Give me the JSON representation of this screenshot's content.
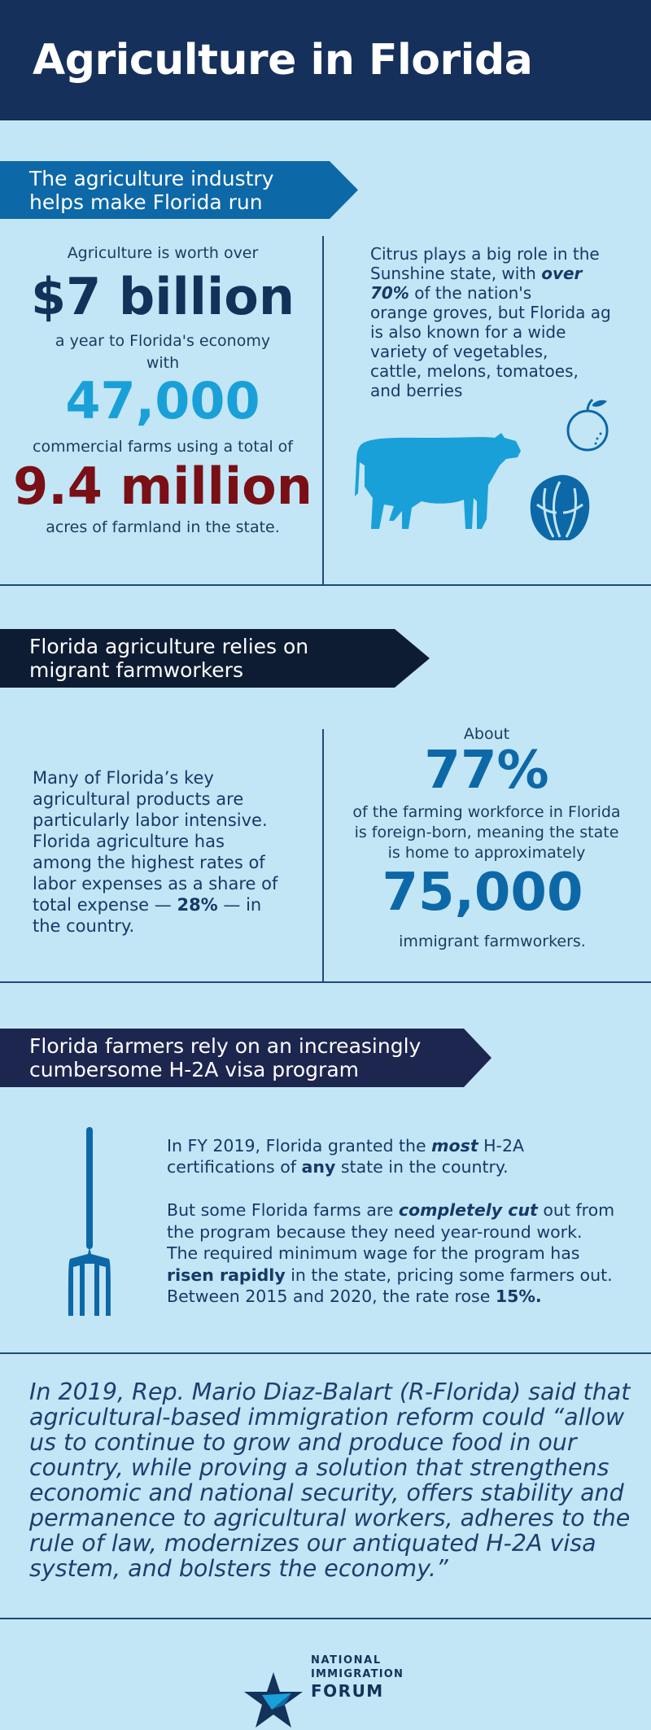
{
  "header": {
    "title": "Agriculture in Florida"
  },
  "section1": {
    "banner": [
      "The agriculture industry",
      "helps make Florida run"
    ],
    "worth_intro": "Agriculture is worth over",
    "worth_value": "$7 billion",
    "worth_suffix": "a year to Florida's economy",
    "with": "with",
    "farms_value": "47,000",
    "farms_suffix": "commercial farms using a total of",
    "acres_value": "9.4 million",
    "acres_suffix": "acres of farmland in the state.",
    "citrus": {
      "l1": "Citrus plays a big role in the",
      "l2a": "Sunshine state, with ",
      "l2b": "over",
      "l3a": "70%",
      "l3b": " of the nation's",
      "l4": "orange groves, but Florida ag",
      "l5": "is also known for a wide",
      "l6": "variety of vegetables,",
      "l7": "cattle, melons, tomatoes,",
      "l8": "and berries"
    },
    "colors": {
      "worth": "#13325a",
      "farms": "#1aa0d8",
      "acres": "#7a0f16"
    }
  },
  "section2": {
    "banner": [
      "Florida agriculture relies on",
      "migrant farmworkers"
    ],
    "left": {
      "l1": "Many of Florida’s key",
      "l2": "agricultural products are",
      "l3": "particularly labor intensive.",
      "l4": "Florida agriculture has",
      "l5": "among the highest rates of",
      "l6": "labor expenses as a share of",
      "l7a": "total expense — ",
      "l7b": "28%",
      "l7c": " — in",
      "l8": "the country."
    },
    "about": "About",
    "pct_value": "77%",
    "pct_line1": "of the farming workforce in Florida",
    "pct_line2": "is foreign-born, meaning the state",
    "pct_line3": "is home to approximately",
    "workers_value": "75,000",
    "workers_suffix": "immigrant farmworkers."
  },
  "section3": {
    "banner": [
      "Florida farmers rely on an increasingly",
      "cumbersome H-2A visa program"
    ],
    "p1": {
      "l1a": "In FY 2019, Florida granted the ",
      "l1b": "most",
      "l1c": " H-2A",
      "l2a": "certifications of ",
      "l2b": "any",
      "l2c": " state in the country."
    },
    "p2": {
      "l1a": "But some Florida farms are ",
      "l1b": "completely cut",
      "l1c": " out from",
      "l2": "the program because they need year-round work.",
      "l3": "The required minimum wage for the program has",
      "l4a": "risen rapidly",
      "l4b": " in the state, pricing some farmers out.",
      "l5a": "Between 2015 and 2020, the rate rose ",
      "l5b": "15%."
    }
  },
  "quote": [
    "In 2019, Rep. Mario Diaz-Balart (R-Florida) said that",
    "agricultural-based immigration reform could “allow",
    "us to continue to grow and produce food in our",
    "country, while proving a solution that strengthens",
    "economic and national security, offers stability and",
    "permanence to agricultural workers, adheres to the",
    "rule of law, modernizes our antiquated H-2A visa",
    "system, and bolsters the economy.”"
  ],
  "logo": {
    "line1": "NATIONAL",
    "line2": "IMMIGRATION",
    "line3": "FORUM"
  },
  "icons": [
    "cow-icon",
    "orange-icon",
    "cabbage-icon",
    "pitchfork-icon",
    "star-logo-icon"
  ]
}
